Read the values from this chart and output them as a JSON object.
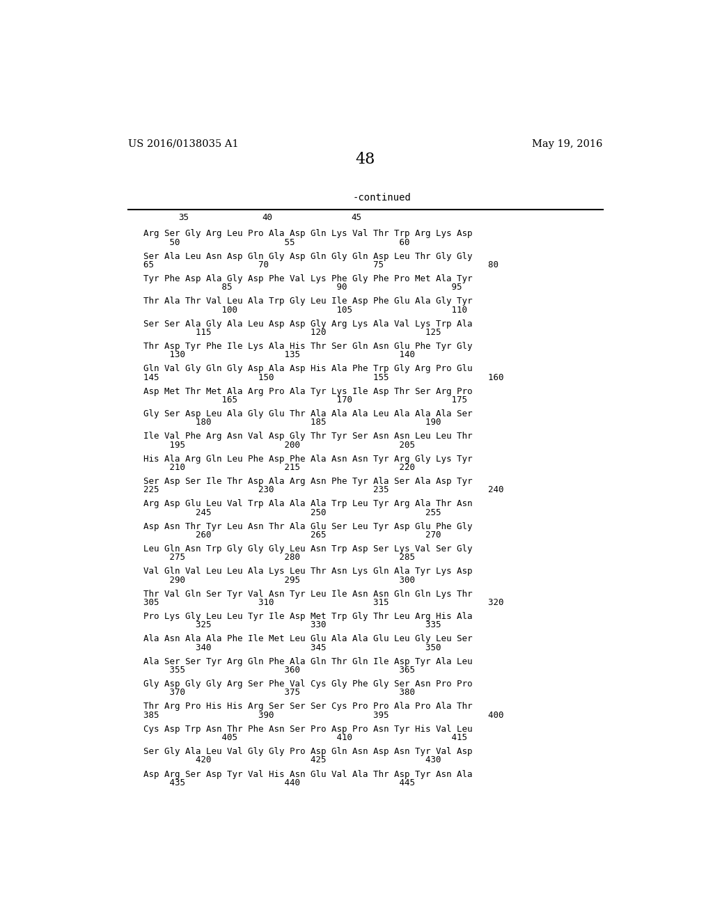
{
  "header_left": "US 2016/0138035 A1",
  "header_right": "May 19, 2016",
  "page_number": "48",
  "continued_label": "-continued",
  "background_color": "#ffffff",
  "text_color": "#000000",
  "sequences": [
    [
      "Arg Ser Gly Arg Leu Pro Ala Asp Gln Lys Val Thr Trp Arg Lys Asp",
      "     50                    55                    60"
    ],
    [
      "Ser Ala Leu Asn Asp Gln Gly Asp Gln Gly Gln Asp Leu Thr Gly Gly",
      "65                    70                    75                    80"
    ],
    [
      "Tyr Phe Asp Ala Gly Asp Phe Val Lys Phe Gly Phe Pro Met Ala Tyr",
      "               85                    90                    95"
    ],
    [
      "Thr Ala Thr Val Leu Ala Trp Gly Leu Ile Asp Phe Glu Ala Gly Tyr",
      "               100                   105                   110"
    ],
    [
      "Ser Ser Ala Gly Ala Leu Asp Asp Gly Arg Lys Ala Val Lys Trp Ala",
      "          115                   120                   125"
    ],
    [
      "Thr Asp Tyr Phe Ile Lys Ala His Thr Ser Gln Asn Glu Phe Tyr Gly",
      "     130                   135                   140"
    ],
    [
      "Gln Val Gly Gln Gly Asp Ala Asp His Ala Phe Trp Gly Arg Pro Glu",
      "145                   150                   155                   160"
    ],
    [
      "Asp Met Thr Met Ala Arg Pro Ala Tyr Lys Ile Asp Thr Ser Arg Pro",
      "               165                   170                   175"
    ],
    [
      "Gly Ser Asp Leu Ala Gly Glu Thr Ala Ala Ala Leu Ala Ala Ala Ser",
      "          180                   185                   190"
    ],
    [
      "Ile Val Phe Arg Asn Val Asp Gly Thr Tyr Ser Asn Asn Leu Leu Thr",
      "     195                   200                   205"
    ],
    [
      "His Ala Arg Gln Leu Phe Asp Phe Ala Asn Asn Tyr Arg Gly Lys Tyr",
      "     210                   215                   220"
    ],
    [
      "Ser Asp Ser Ile Thr Asp Ala Arg Asn Phe Tyr Ala Ser Ala Asp Tyr",
      "225                   230                   235                   240"
    ],
    [
      "Arg Asp Glu Leu Val Trp Ala Ala Ala Trp Leu Tyr Arg Ala Thr Asn",
      "          245                   250                   255"
    ],
    [
      "Asp Asn Thr Tyr Leu Asn Thr Ala Glu Ser Leu Tyr Asp Glu Phe Gly",
      "          260                   265                   270"
    ],
    [
      "Leu Gln Asn Trp Gly Gly Gly Leu Asn Trp Asp Ser Lys Val Ser Gly",
      "     275                   280                   285"
    ],
    [
      "Val Gln Val Leu Leu Ala Lys Leu Thr Asn Lys Gln Ala Tyr Lys Asp",
      "     290                   295                   300"
    ],
    [
      "Thr Val Gln Ser Tyr Val Asn Tyr Leu Ile Asn Asn Gln Gln Lys Thr",
      "305                   310                   315                   320"
    ],
    [
      "Pro Lys Gly Leu Leu Tyr Ile Asp Met Trp Gly Thr Leu Arg His Ala",
      "          325                   330                   335"
    ],
    [
      "Ala Asn Ala Ala Phe Ile Met Leu Glu Ala Ala Glu Leu Gly Leu Ser",
      "          340                   345                   350"
    ],
    [
      "Ala Ser Ser Tyr Arg Gln Phe Ala Gln Thr Gln Ile Asp Tyr Ala Leu",
      "     355                   360                   365"
    ],
    [
      "Gly Asp Gly Gly Arg Ser Phe Val Cys Gly Phe Gly Ser Asn Pro Pro",
      "     370                   375                   380"
    ],
    [
      "Thr Arg Pro His His Arg Ser Ser Ser Cys Pro Pro Ala Pro Ala Thr",
      "385                   390                   395                   400"
    ],
    [
      "Cys Asp Trp Asn Thr Phe Asn Ser Pro Asp Pro Asn Tyr His Val Leu",
      "               405                   410                   415"
    ],
    [
      "Ser Gly Ala Leu Val Gly Gly Pro Asp Gln Asn Asp Asn Tyr Val Asp",
      "          420                   425                   430"
    ],
    [
      "Asp Arg Ser Asp Tyr Val His Asn Glu Val Ala Thr Asp Tyr Asn Ala",
      "     435                   440                   445"
    ]
  ]
}
